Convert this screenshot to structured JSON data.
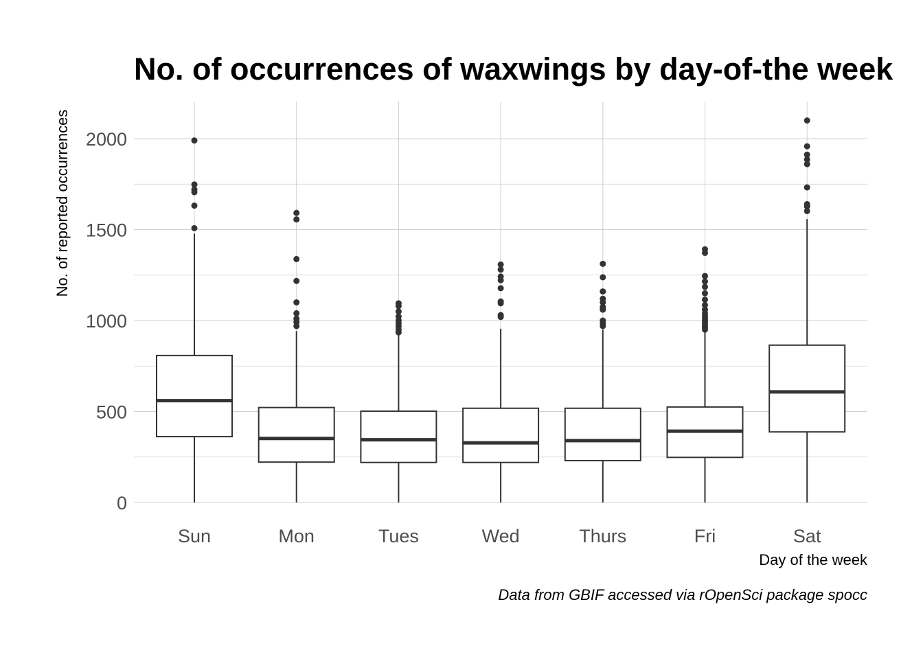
{
  "chart_data": {
    "type": "box",
    "title": "No. of occurrences of waxwings by day-of-the week",
    "xlabel": "Day of the week",
    "ylabel": "No. of reported occurrences",
    "caption": "Data from GBIF accessed via rOpenSci package spocc",
    "categories": [
      "Sun",
      "Mon",
      "Tues",
      "Wed",
      "Thurs",
      "Fri",
      "Sat"
    ],
    "ylim": [
      0,
      2200
    ],
    "y_ticks": [
      0,
      500,
      1000,
      1500,
      2000
    ],
    "grid": true,
    "colors": {
      "box_outline": "#333333",
      "box_fill": "#ffffff",
      "grid": "#d0d0d0",
      "tick_text": "#4d4d4d"
    },
    "boxes": [
      {
        "category": "Sun",
        "whisker_low": 0,
        "q1": 362,
        "median": 560,
        "q3": 808,
        "whisker_high": 1478,
        "outliers": [
          1508,
          1632,
          1706,
          1720,
          1748,
          1990
        ]
      },
      {
        "category": "Mon",
        "whisker_low": 0,
        "q1": 222,
        "median": 352,
        "q3": 522,
        "whisker_high": 942,
        "outliers": [
          970,
          992,
          1010,
          1040,
          1100,
          1218,
          1338,
          1556,
          1592
        ]
      },
      {
        "category": "Tues",
        "whisker_low": 0,
        "q1": 220,
        "median": 345,
        "q3": 502,
        "whisker_high": 930,
        "outliers": [
          935,
          950,
          968,
          985,
          1000,
          1022,
          1050,
          1080,
          1095
        ]
      },
      {
        "category": "Wed",
        "whisker_low": 0,
        "q1": 220,
        "median": 328,
        "q3": 518,
        "whisker_high": 955,
        "outliers": [
          1020,
          1030,
          1095,
          1105,
          1178,
          1222,
          1242,
          1280,
          1308
        ]
      },
      {
        "category": "Thurs",
        "whisker_low": 0,
        "q1": 230,
        "median": 340,
        "q3": 518,
        "whisker_high": 950,
        "outliers": [
          970,
          985,
          1000,
          1060,
          1075,
          1100,
          1120,
          1160,
          1238,
          1312
        ]
      },
      {
        "category": "Fri",
        "whisker_low": 0,
        "q1": 248,
        "median": 392,
        "q3": 525,
        "whisker_high": 940,
        "outliers": [
          950,
          962,
          975,
          988,
          1000,
          1012,
          1025,
          1040,
          1060,
          1085,
          1115,
          1150,
          1185,
          1215,
          1245,
          1372,
          1392
        ]
      },
      {
        "category": "Sat",
        "whisker_low": 0,
        "q1": 388,
        "median": 608,
        "q3": 865,
        "whisker_high": 1558,
        "outliers": [
          1602,
          1628,
          1640,
          1732,
          1860,
          1885,
          1912,
          1958,
          2100
        ]
      }
    ]
  }
}
